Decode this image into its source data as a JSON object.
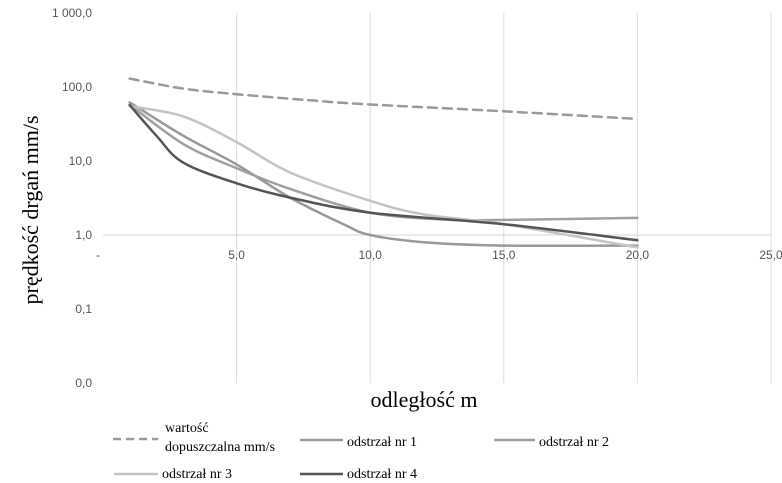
{
  "chart_data": {
    "type": "line",
    "y_scale": "log",
    "y_axis": {
      "label": "prędkość drgań mm/s",
      "ticks": [
        {
          "value": 0.01,
          "label": "0,0"
        },
        {
          "value": 0.1,
          "label": "0,1"
        },
        {
          "value": 1,
          "label": "1,0"
        },
        {
          "value": 10,
          "label": "10,0"
        },
        {
          "value": 100,
          "label": "100,0"
        },
        {
          "value": 1000,
          "label": "1 000,0"
        }
      ],
      "range": [
        0.01,
        1000
      ]
    },
    "x_axis": {
      "label": "odległość m",
      "ticks": [
        {
          "value": 0,
          "label": "-"
        },
        {
          "value": 5,
          "label": "5,0"
        },
        {
          "value": 10,
          "label": "10,0"
        },
        {
          "value": 15,
          "label": "15,0"
        },
        {
          "value": 20,
          "label": "20,0"
        },
        {
          "value": 25,
          "label": "25,0"
        }
      ],
      "range": [
        0,
        25
      ],
      "crosses_y_at": 1
    },
    "grid": "vertical",
    "legend_position": "bottom",
    "series": [
      {
        "name": "wartość dopuszczalna mm/s",
        "color": "#9a9a9a",
        "dash": true,
        "x": [
          1,
          3,
          5,
          8,
          10,
          15,
          20
        ],
        "y": [
          130,
          95,
          80,
          65,
          58,
          47,
          37
        ]
      },
      {
        "name": "odstrzał nr 1",
        "color": "#999999",
        "dash": false,
        "x": [
          1,
          3,
          5,
          7,
          9,
          10,
          12,
          15,
          20
        ],
        "y": [
          62,
          22,
          9,
          3.2,
          1.4,
          1.0,
          0.8,
          0.72,
          0.72
        ]
      },
      {
        "name": "odstrzał nr 2",
        "color": "#a0a0a0",
        "dash": false,
        "x": [
          1,
          3,
          5,
          7,
          10,
          13,
          15,
          20
        ],
        "y": [
          58,
          17,
          8,
          4.2,
          2.0,
          1.6,
          1.6,
          1.7
        ]
      },
      {
        "name": "odstrzał nr 3",
        "color": "#c4c4c4",
        "dash": false,
        "x": [
          1,
          3,
          5,
          7,
          10,
          12,
          15,
          20
        ],
        "y": [
          55,
          40,
          18,
          7,
          2.9,
          1.9,
          1.4,
          0.68
        ]
      },
      {
        "name": "odstrzał nr 4",
        "color": "#555555",
        "dash": false,
        "x": [
          1,
          2,
          3,
          5,
          7,
          10,
          15,
          20
        ],
        "y": [
          57,
          22,
          9.5,
          5,
          3.2,
          2.0,
          1.4,
          0.85
        ]
      }
    ]
  }
}
